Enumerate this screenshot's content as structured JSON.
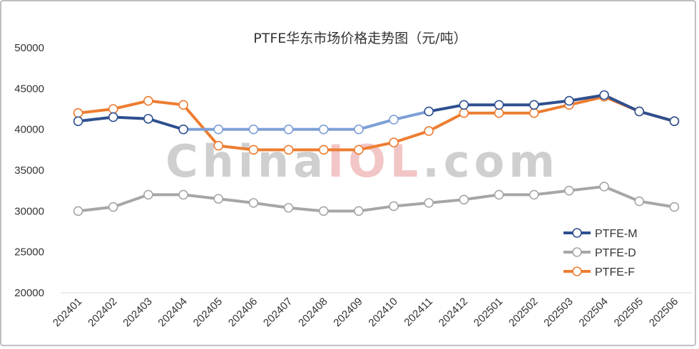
{
  "watermark": {
    "parts": [
      {
        "text": "China",
        "color": "#cfcfcf"
      },
      {
        "text": "IOL",
        "color": "#f2c6c6"
      },
      {
        "text": ".com",
        "color": "#cfcfcf"
      }
    ]
  },
  "chart_data": {
    "type": "line",
    "title": "PTFE华东市场价格走势图（元/吨）",
    "xlabel": "",
    "ylabel": "",
    "ylim": [
      20000,
      50000
    ],
    "yticks": [
      20000,
      25000,
      30000,
      35000,
      40000,
      45000,
      50000
    ],
    "grid": false,
    "legend_position": "bottom-right",
    "categories": [
      "202401",
      "202402",
      "202403",
      "202404",
      "202405",
      "202406",
      "202407",
      "202408",
      "202409",
      "202410",
      "202411",
      "202412",
      "202501",
      "202502",
      "202503",
      "202504",
      "202505",
      "202506"
    ],
    "series": [
      {
        "name": "PTFE-M",
        "color": "#2e4f8f",
        "highlight_color": "#7d9fd6",
        "values": [
          41000,
          41500,
          41300,
          40000,
          40000,
          40000,
          40000,
          40000,
          40000,
          41200,
          42200,
          43000,
          43000,
          43000,
          43500,
          44200,
          42200,
          41000
        ]
      },
      {
        "name": "PTFE-D",
        "color": "#a6a6a6",
        "values": [
          30000,
          30500,
          32000,
          32000,
          31500,
          31000,
          30400,
          30000,
          30000,
          30600,
          31000,
          31400,
          32000,
          32000,
          32500,
          33000,
          31200,
          30500
        ]
      },
      {
        "name": "PTFE-F",
        "color": "#ed7d31",
        "values": [
          42000,
          42500,
          43500,
          43000,
          38000,
          37500,
          37500,
          37500,
          37500,
          38400,
          39800,
          42000,
          42000,
          42000,
          43000,
          44000,
          42200,
          41000
        ]
      }
    ]
  }
}
